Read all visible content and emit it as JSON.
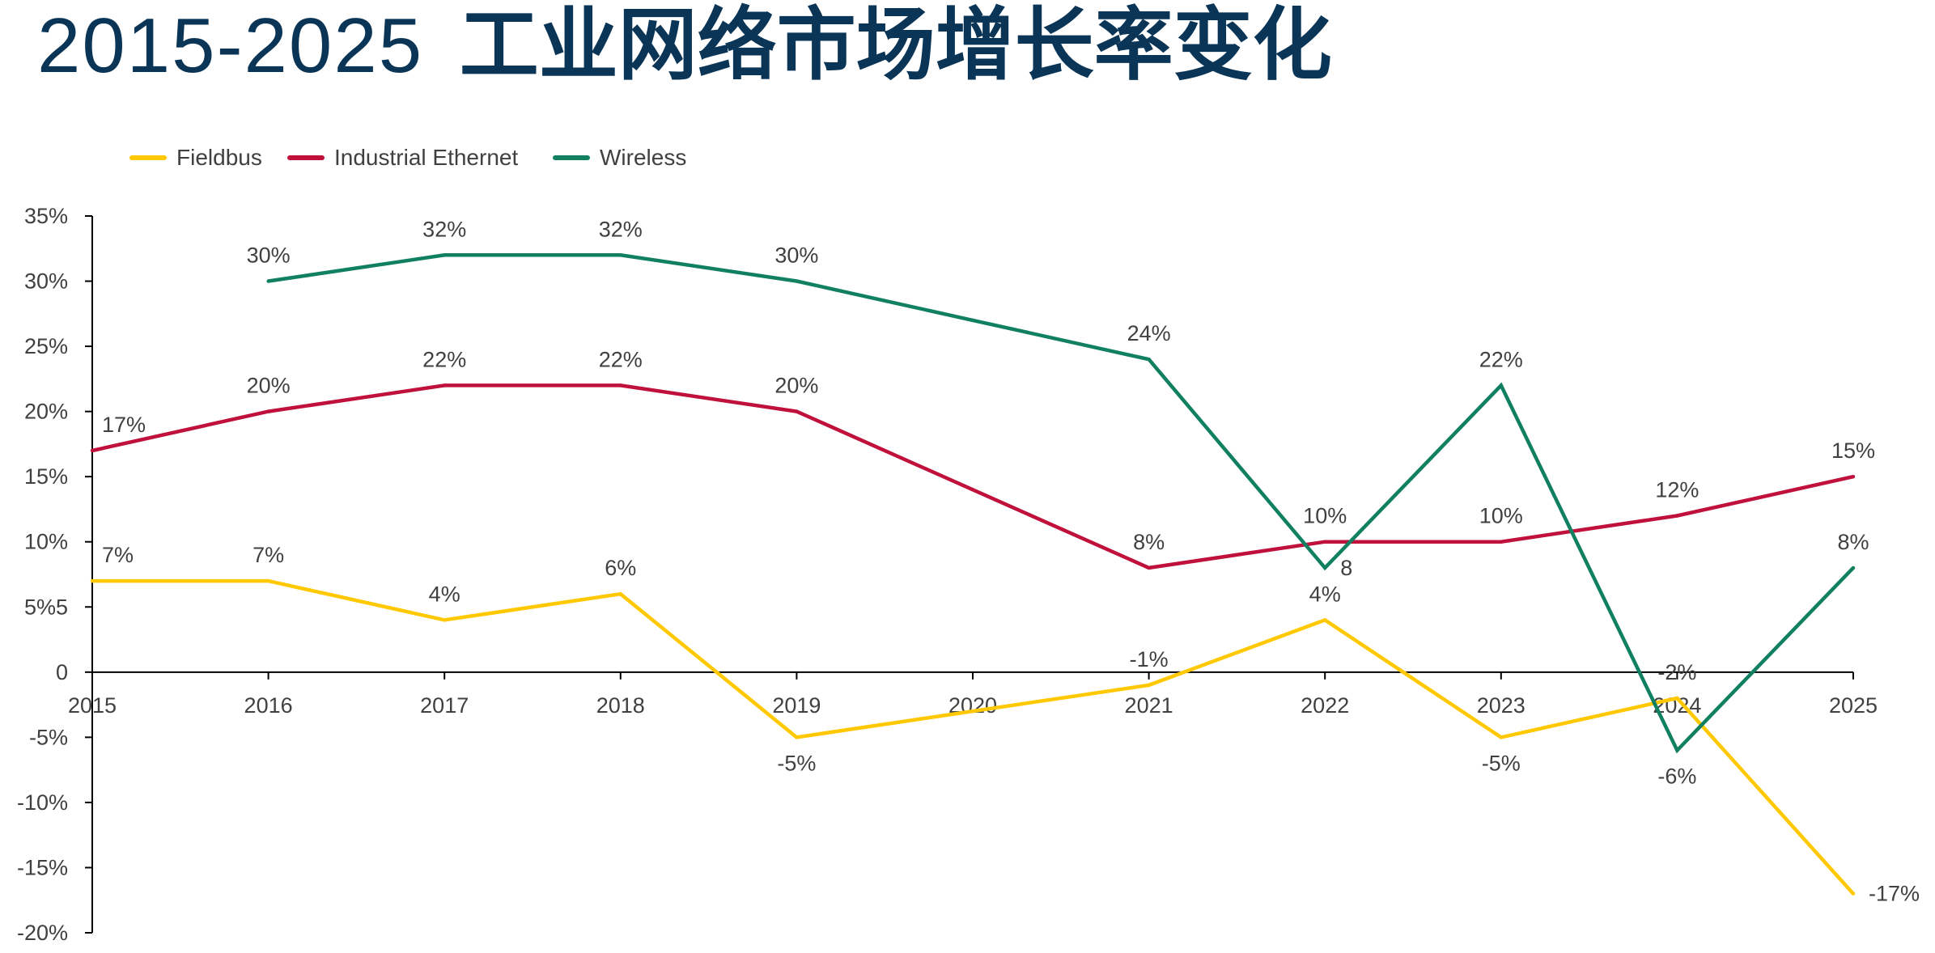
{
  "colors": {
    "title": "#0B3556",
    "text": "#404040",
    "axis": "#000000"
  },
  "chart_data": {
    "type": "line",
    "title": "2015-2025 工业网络市场增长率变化",
    "x": [
      "2015",
      "2016",
      "2017",
      "2018",
      "2019",
      "2020",
      "2021",
      "2022",
      "2023",
      "2024",
      "2025"
    ],
    "ylim": [
      -20,
      35
    ],
    "yticks": [
      {
        "value": 35,
        "label": "35%"
      },
      {
        "value": 30,
        "label": "30%"
      },
      {
        "value": 25,
        "label": "25%"
      },
      {
        "value": 20,
        "label": "20%"
      },
      {
        "value": 15,
        "label": "15%"
      },
      {
        "value": 10,
        "label": "10%"
      },
      {
        "value": 5,
        "label": "5%5"
      },
      {
        "value": 0,
        "label": "0"
      },
      {
        "value": -5,
        "label": "-5%"
      },
      {
        "value": -10,
        "label": "-10%"
      },
      {
        "value": -15,
        "label": "-15%"
      },
      {
        "value": -20,
        "label": "-20%"
      }
    ],
    "grid": false,
    "legend_position": "top-left",
    "series": [
      {
        "name": "Fieldbus",
        "color": "#FFC800",
        "values": [
          7,
          7,
          4,
          6,
          -5,
          -3,
          -1,
          4,
          -5,
          -2,
          -17
        ],
        "labels": [
          "7%",
          "7%",
          "4%",
          "6%",
          "-5%",
          null,
          "-1%",
          "4%",
          "-5%",
          "-2%",
          "-17%"
        ],
        "label_positions": [
          "above-right",
          "above",
          "above",
          "above",
          "below",
          null,
          "above",
          "above",
          "below",
          "above",
          "right"
        ]
      },
      {
        "name": "Industrial Ethernet",
        "color": "#C0103C",
        "values": [
          17,
          20,
          22,
          22,
          20,
          14,
          8,
          10,
          10,
          12,
          15
        ],
        "labels": [
          "17%",
          "20%",
          "22%",
          "22%",
          "20%",
          null,
          "8%",
          "10%",
          "10%",
          "12%",
          "15%"
        ],
        "label_positions": [
          "above-right",
          "above",
          "above",
          "above",
          "above",
          null,
          "above",
          "above",
          "above",
          "above",
          "above"
        ]
      },
      {
        "name": "Wireless",
        "color": "#108061",
        "values": [
          null,
          30,
          32,
          32,
          30,
          27,
          24,
          8,
          22,
          -6,
          8
        ],
        "labels": [
          null,
          "30%",
          "32%",
          "32%",
          "30%",
          null,
          "24%",
          "8",
          "22%",
          "-6%",
          "8%"
        ],
        "label_positions": [
          null,
          "above",
          "above",
          "above",
          "above",
          null,
          "above",
          "right",
          "above",
          "below",
          "above"
        ]
      }
    ]
  }
}
